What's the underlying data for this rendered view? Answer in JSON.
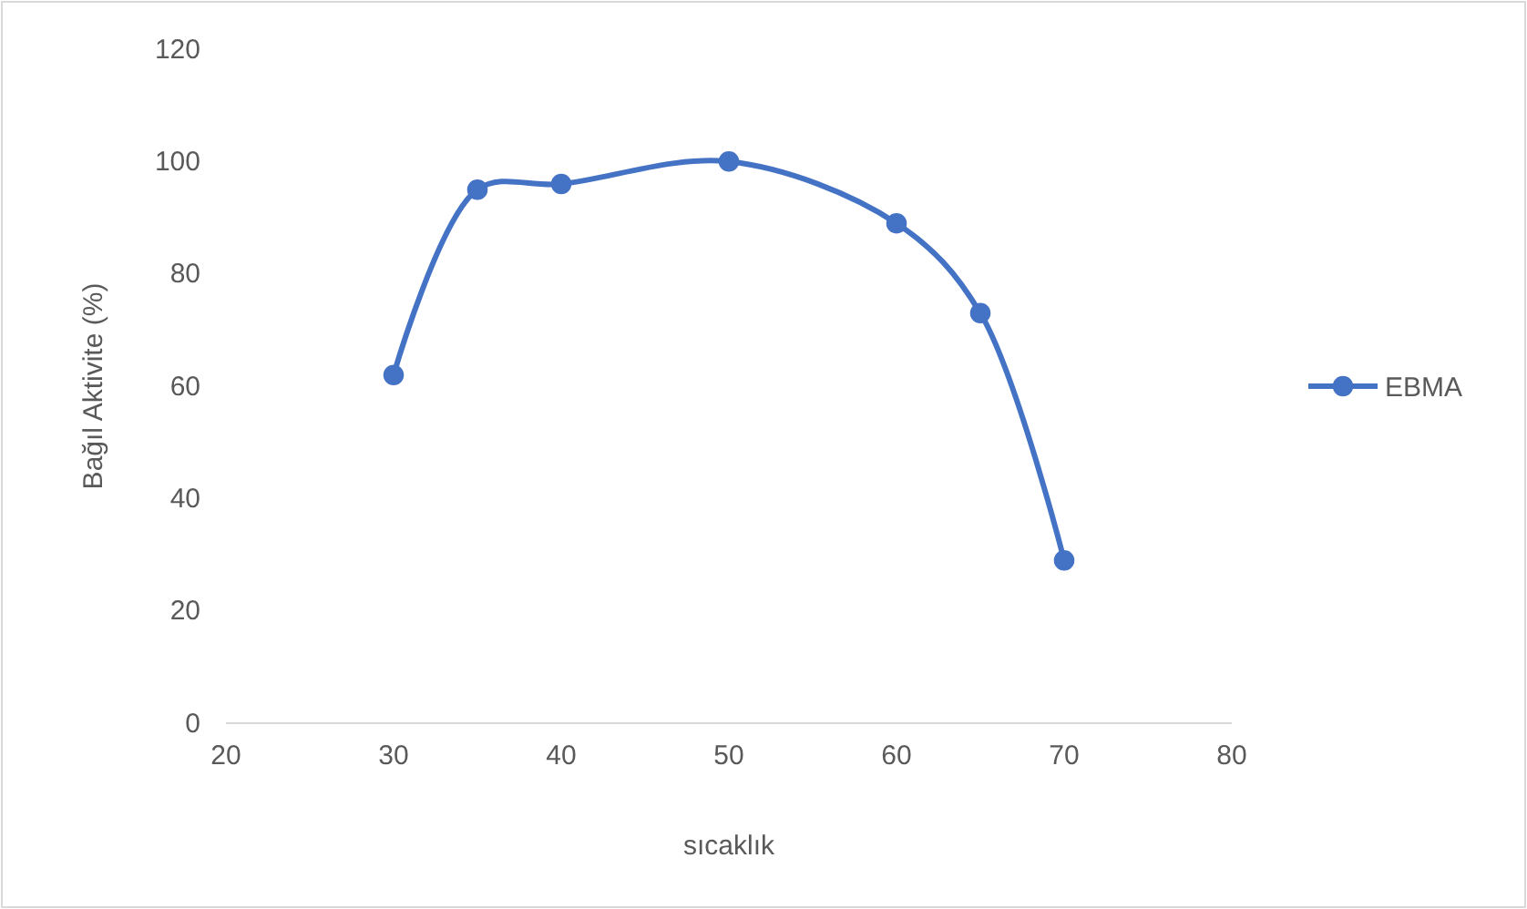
{
  "chart_data": {
    "type": "line",
    "xlabel": "sıcaklık",
    "ylabel": "Bağıl Aktivite (%)",
    "x": [
      30,
      35,
      40,
      50,
      60,
      65,
      70
    ],
    "series": [
      {
        "name": "EBMA",
        "color": "#4472c4",
        "values": [
          62,
          95,
          96,
          100,
          89,
          73,
          29
        ]
      }
    ],
    "xlim": [
      20,
      80
    ],
    "xticks": [
      20,
      30,
      40,
      50,
      60,
      70,
      80
    ],
    "ylim": [
      0,
      120
    ],
    "yticks": [
      0,
      20,
      40,
      60,
      80,
      100,
      120
    ],
    "grid": false,
    "legend": "right",
    "marker": "circle",
    "line_style": "solid"
  }
}
